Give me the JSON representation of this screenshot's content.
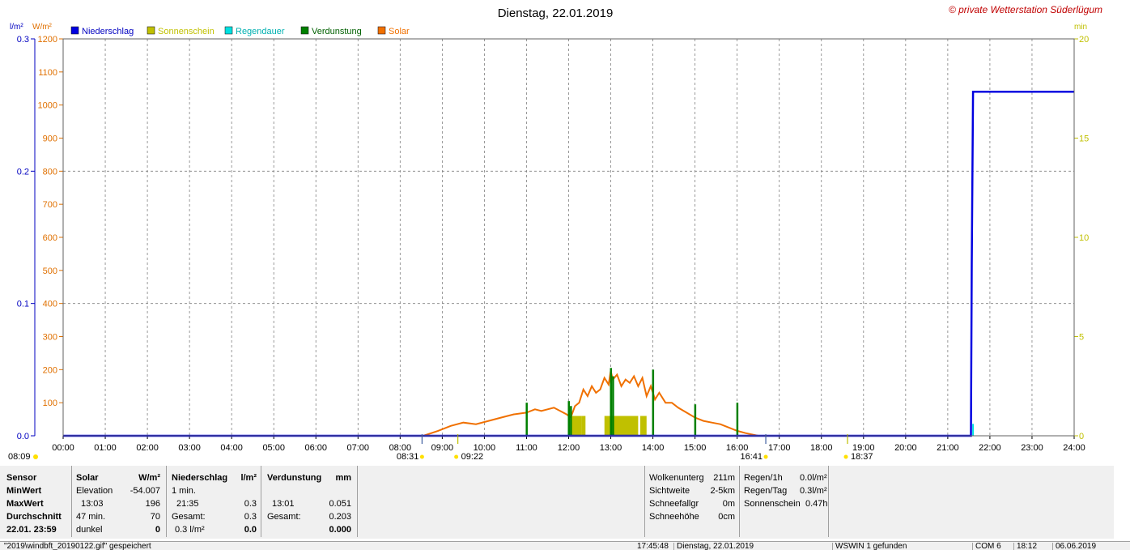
{
  "chart_data": {
    "type": "line",
    "title": "Dienstag, 22.01.2019",
    "watermark": "© private Wetterstation Süderlügum",
    "axes": {
      "precip": {
        "unit": "l/m²",
        "range": [
          0,
          0.3
        ],
        "ticks": [
          "0.0",
          "0.1",
          "0.2",
          "0.3"
        ],
        "color": "#0000c0"
      },
      "solar": {
        "unit": "W/m²",
        "range": [
          0,
          1200
        ],
        "ticks": [
          "100",
          "200",
          "300",
          "400",
          "500",
          "600",
          "700",
          "800",
          "900",
          "1000",
          "1100",
          "1200"
        ],
        "color": "#e07000"
      },
      "minutes": {
        "unit": "min",
        "range": [
          0,
          20
        ],
        "ticks": [
          "0",
          "5",
          "10",
          "15",
          "20"
        ],
        "color": "#c0c000"
      },
      "x": {
        "range": [
          0,
          24
        ],
        "ticks": [
          "00:00",
          "01:00",
          "02:00",
          "03:00",
          "04:00",
          "05:00",
          "06:00",
          "07:00",
          "08:00",
          "09:00",
          "10:00",
          "11:00",
          "12:00",
          "13:00",
          "14:00",
          "15:00",
          "16:00",
          "17:00",
          "18:00",
          "19:00",
          "20:00",
          "21:00",
          "22:00",
          "23:00",
          "24:00"
        ]
      }
    },
    "legend": [
      {
        "name": "Niederschlag",
        "color": "#0000e0"
      },
      {
        "name": "Sonnenschein",
        "color": "#c0c000"
      },
      {
        "name": "Regendauer",
        "color": "#00e0e0"
      },
      {
        "name": "Verdunstung",
        "color": "#008000"
      },
      {
        "name": "Solar",
        "color": "#f07000"
      }
    ],
    "markers": [
      {
        "label": "08:09",
        "hour": 8.15,
        "row": 0
      },
      {
        "label": "08:31",
        "hour": 8.52,
        "row": 1
      },
      {
        "label": "09:22",
        "hour": 9.37,
        "row": 1
      },
      {
        "label": "16:41",
        "hour": 16.68,
        "row": 1
      },
      {
        "label": "18:37",
        "hour": 18.62,
        "row": 1
      }
    ],
    "series": [
      {
        "name": "Solar",
        "color": "#f07000",
        "x": [
          8.55,
          8.9,
          9.2,
          9.5,
          9.8,
          10.1,
          10.4,
          10.7,
          11.0,
          11.2,
          11.35,
          11.5,
          11.65,
          11.8,
          11.95,
          12.05,
          12.15,
          12.25,
          12.35,
          12.45,
          12.55,
          12.65,
          12.75,
          12.85,
          12.95,
          13.0,
          13.05,
          13.15,
          13.25,
          13.35,
          13.45,
          13.55,
          13.65,
          13.75,
          13.85,
          13.95,
          14.05,
          14.15,
          14.3,
          14.45,
          14.6,
          14.8,
          15.0,
          15.2,
          15.4,
          15.6,
          15.8,
          16.0,
          16.2,
          16.5
        ],
        "y": [
          0,
          15,
          30,
          40,
          35,
          45,
          55,
          65,
          70,
          80,
          75,
          80,
          85,
          75,
          65,
          55,
          90,
          100,
          140,
          120,
          150,
          130,
          140,
          175,
          155,
          196,
          170,
          185,
          150,
          170,
          160,
          180,
          150,
          175,
          120,
          150,
          110,
          130,
          100,
          100,
          85,
          70,
          55,
          45,
          40,
          35,
          25,
          15,
          8,
          0
        ]
      },
      {
        "name": "Niederschlag",
        "color": "#0000e0",
        "x": [
          0,
          21.55,
          21.57,
          21.6,
          24
        ],
        "y": [
          0,
          0,
          0.13,
          0.26,
          0.26
        ]
      },
      {
        "name": "Sonnenschein",
        "color": "#c0c000",
        "blocks": [
          [
            12.05,
            12.3,
            1
          ],
          [
            12.3,
            12.4,
            1
          ],
          [
            12.85,
            13.65,
            1
          ],
          [
            13.7,
            13.85,
            1
          ]
        ]
      },
      {
        "name": "Verdunstung",
        "color": "#008000",
        "spikes": [
          [
            11.0,
            100
          ],
          [
            12.0,
            105
          ],
          [
            12.05,
            90
          ],
          [
            13.0,
            205
          ],
          [
            13.05,
            180
          ],
          [
            14.0,
            200
          ],
          [
            15.0,
            95
          ],
          [
            16.0,
            100
          ]
        ]
      },
      {
        "name": "Regendauer",
        "color": "#00e0e0",
        "spikes": [
          [
            21.6,
            0.6
          ]
        ]
      }
    ]
  },
  "stats": {
    "col1": {
      "h": "Sensor",
      "r1": "MinWert",
      "r2": "MaxWert",
      "r3": "Durchschnitt",
      "r4": "22.01. 23:59"
    },
    "col2": {
      "h": "Solar",
      "hu": "W/m²",
      "r1a": "Elevation",
      "r1b": "-54.007",
      "r2a": "13:03",
      "r2b": "196",
      "r3a": "47 min.",
      "r3b": "70",
      "r4a": "dunkel",
      "r4b": "0"
    },
    "col3": {
      "h": "Niederschlag",
      "hu": "l/m²",
      "r1a": "1 min.",
      "r2a": "21:35",
      "r2b": "0.3",
      "r3a": "Gesamt:",
      "r3b": "0.3",
      "r4a": "0.3 l/m²",
      "r4b": "0.0"
    },
    "col4": {
      "h": "Verdunstung",
      "hu": "mm",
      "r2a": "13:01",
      "r2b": "0.051",
      "r3a": "Gesamt:",
      "r3b": "0.203",
      "r4b": "0.000"
    },
    "col5": {
      "r1a": "Wolkenunterg",
      "r1b": "211m",
      "r2a": "Sichtweite",
      "r2b": "2-5km",
      "r3a": "Schneefallgr",
      "r3b": "0m",
      "r4a": "Schneehöhe",
      "r4b": "0cm"
    },
    "col6": {
      "r1a": "Regen/1h",
      "r1b": "0.0l/m²",
      "r2a": "Regen/Tag",
      "r2b": "0.3l/m²",
      "r3a": "Sonnenschein",
      "r3b": "0.47h"
    }
  },
  "statusbar": {
    "s1": "\"2019\\windbft_20190122.gif\" gespeichert",
    "s2": "17:45:48",
    "s3": "Dienstag, 22.01.2019",
    "s4": "WSWIN 1 gefunden",
    "s5": "COM 6",
    "s6": "18:12",
    "s7": "06.06.2019"
  }
}
